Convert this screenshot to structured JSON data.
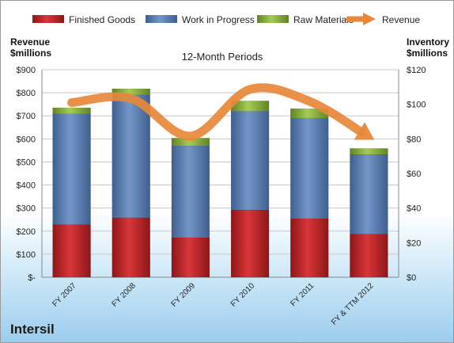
{
  "company": "Intersil",
  "chart_data": {
    "type": "bar",
    "subtitle": "12-Month Periods",
    "categories": [
      "FY 2007",
      "FY 2008",
      "FY 2009",
      "FY 2010",
      "FY 2011",
      "FY & TTM 2012"
    ],
    "stacked": true,
    "series": [
      {
        "name": "Finished Goods",
        "axis": "right",
        "color": "#c0282a",
        "values": [
          30.5,
          34.5,
          23,
          39,
          34,
          25
        ]
      },
      {
        "name": "Work in Progress",
        "axis": "right",
        "color": "#5b7fb5",
        "values": [
          64,
          71,
          53,
          57,
          58,
          46
        ]
      },
      {
        "name": "Raw Materials",
        "axis": "right",
        "color": "#8cb43c",
        "values": [
          3.5,
          3.5,
          4.5,
          6,
          5.5,
          3.5
        ]
      }
    ],
    "line": {
      "name": "Revenue",
      "axis": "left",
      "color": "#e8883a",
      "values": [
        757,
        775,
        612,
        815,
        763,
        610
      ]
    },
    "left_axis": {
      "label_line1": "Revenue",
      "label_line2": "$millions",
      "min": 0,
      "max": 900,
      "step": 100,
      "tick_labels": [
        "$-",
        "$100",
        "$200",
        "$300",
        "$400",
        "$500",
        "$600",
        "$700",
        "$800",
        "$900"
      ]
    },
    "right_axis": {
      "label_line1": "Inventory",
      "label_line2": "$millions",
      "min": 0,
      "max": 120,
      "step": 20,
      "tick_labels": [
        "$0",
        "$20",
        "$40",
        "$60",
        "$80",
        "$100",
        "$120"
      ]
    },
    "legend_position": "top",
    "grid": true
  }
}
